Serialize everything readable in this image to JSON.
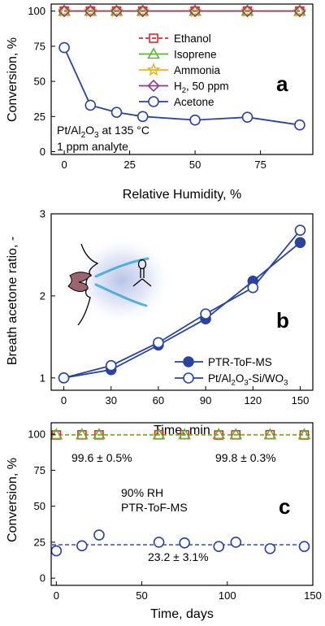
{
  "chart_data": [
    {
      "panel": "a",
      "type": "line",
      "xlabel": "Relative Humidity, %",
      "ylabel": "Conversion, %",
      "xlim": [
        -5,
        95
      ],
      "ylim": [
        -2,
        105
      ],
      "xticks": [
        0,
        25,
        50,
        75
      ],
      "yticks": [
        0,
        25,
        50,
        75,
        100
      ],
      "legend_position": "top-center",
      "annotation_lines": [
        {
          "prefix": "Pt/Al",
          "sub1": "2",
          "mid": "O",
          "sub2": "3",
          "suffix": " at 135 °C"
        },
        {
          "text": "1 ppm analyte"
        }
      ],
      "series": [
        {
          "name": "Ethanol",
          "marker": "square",
          "color": "#e8262b",
          "dashed": true,
          "x": [
            0,
            10,
            20,
            30,
            50,
            70,
            90
          ],
          "y": [
            100,
            100,
            100,
            100,
            100,
            100,
            100
          ]
        },
        {
          "name": "Isoprene",
          "marker": "triangle",
          "color": "#5bb531",
          "dashed": false,
          "x": [
            0,
            10,
            20,
            30,
            50,
            70,
            90
          ],
          "y": [
            100,
            100,
            100,
            100,
            100,
            100,
            100
          ]
        },
        {
          "name": "Ammonia",
          "marker": "star",
          "color": "#f2b11c",
          "dashed": false,
          "x": [
            0,
            10,
            20,
            30,
            50,
            70,
            90
          ],
          "y": [
            100,
            100,
            100,
            100,
            100,
            100,
            100
          ]
        },
        {
          "name_parts": [
            "H",
            "2",
            ", 50 ppm"
          ],
          "marker": "diamond",
          "color": "#8c3a8c",
          "dashed": false,
          "x": [
            0,
            10,
            20,
            30,
            50,
            70,
            90
          ],
          "y": [
            100,
            100,
            100,
            100,
            100,
            100,
            100
          ]
        },
        {
          "name": "Acetone",
          "marker": "circle",
          "color": "#2a42a0",
          "dashed": false,
          "x": [
            0,
            10,
            20,
            30,
            50,
            70,
            90
          ],
          "y": [
            74,
            33,
            28,
            25,
            22.5,
            24.5,
            19
          ]
        }
      ]
    },
    {
      "panel": "b",
      "type": "line",
      "xlabel": "Time, min",
      "ylabel": "Breath acetone ratio, -",
      "xlim": [
        -8,
        158
      ],
      "ylim": [
        0.85,
        3.0
      ],
      "xticks": [
        0,
        30,
        60,
        90,
        120,
        150
      ],
      "yticks": [
        1,
        2,
        3
      ],
      "legend_position": "bottom-right",
      "series": [
        {
          "name": "PTR-ToF-MS",
          "marker": "circle-filled",
          "color": "#2a42a0",
          "x": [
            0,
            30,
            60,
            90,
            120,
            150
          ],
          "y": [
            1.0,
            1.1,
            1.4,
            1.72,
            2.18,
            2.65
          ]
        },
        {
          "name_parts": [
            "Pt/Al",
            "2",
            "O",
            "3",
            "-Si/WO",
            "3"
          ],
          "marker": "circle-open",
          "color": "#2a42a0",
          "x": [
            0,
            30,
            60,
            90,
            120,
            150
          ],
          "y": [
            1.0,
            1.15,
            1.43,
            1.78,
            2.1,
            2.8
          ]
        }
      ]
    },
    {
      "panel": "c",
      "type": "scatter",
      "xlabel": "Time, days",
      "ylabel": "Conversion, %",
      "xlim": [
        -3,
        150
      ],
      "ylim": [
        -5,
        108
      ],
      "xticks": [
        0,
        50,
        100,
        150
      ],
      "yticks": [
        0,
        25,
        50,
        75,
        100
      ],
      "annotations": [
        {
          "text": "99.6 ± 0.5%",
          "color": "#e8262b"
        },
        {
          "text": "99.8 ± 0.3%",
          "color": "#5bb531"
        },
        {
          "text": "23.2 ± 3.1%",
          "color": "#2a42a0"
        },
        {
          "text": "90% RH",
          "color": "#000000"
        },
        {
          "text": "PTR-ToF-MS",
          "color": "#000000"
        }
      ],
      "reference_lines": [
        {
          "y": 99.6,
          "color": "#e8262b"
        },
        {
          "y": 99.8,
          "color": "#8fa83a"
        },
        {
          "y": 23.2,
          "color": "#2a42a0"
        }
      ],
      "series": [
        {
          "marker": "square",
          "color": "#e8262b",
          "x": [
            0,
            15,
            25,
            60,
            75,
            95,
            105,
            125,
            145
          ],
          "y": [
            99.5,
            99.6,
            99.6,
            99.6,
            99.7,
            99.5,
            99.6,
            99.7,
            99.5
          ]
        },
        {
          "marker": "triangle",
          "color": "#5bb531",
          "x": [
            0,
            15,
            25,
            60,
            75,
            95,
            105,
            125,
            145
          ],
          "y": [
            99.8,
            99.8,
            99.9,
            99.7,
            99.8,
            99.9,
            99.8,
            99.8,
            99.8
          ]
        },
        {
          "marker": "circle",
          "color": "#2a42a0",
          "x": [
            0,
            15,
            25,
            60,
            75,
            95,
            105,
            125,
            145
          ],
          "y": [
            19,
            22.5,
            30,
            25,
            24.5,
            22,
            25,
            20.5,
            22
          ]
        }
      ]
    }
  ]
}
